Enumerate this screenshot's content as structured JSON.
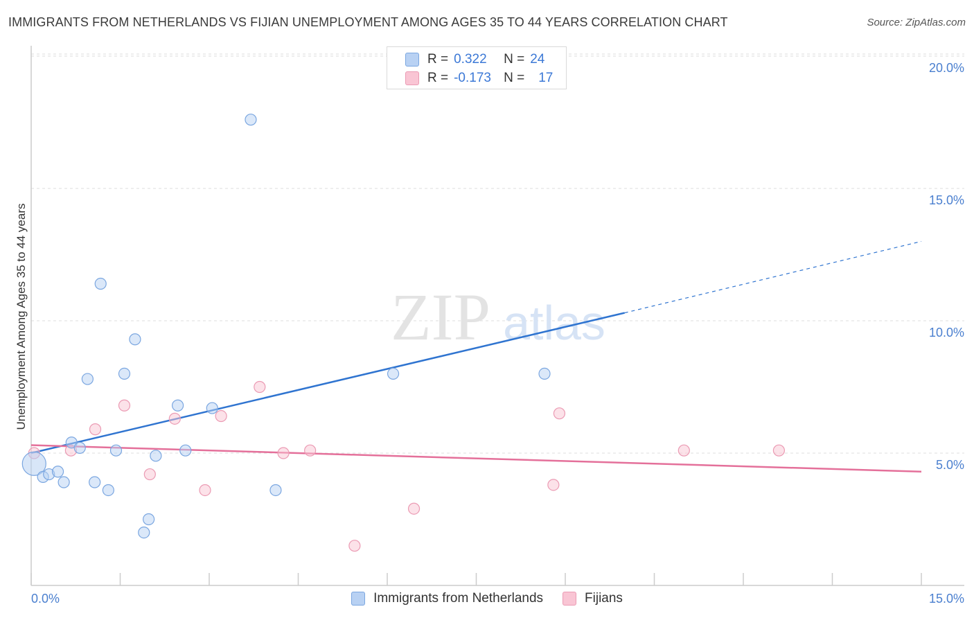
{
  "title": "IMMIGRANTS FROM NETHERLANDS VS FIJIAN UNEMPLOYMENT AMONG AGES 35 TO 44 YEARS CORRELATION CHART",
  "source": "Source: ZipAtlas.com",
  "watermark": {
    "zip": "ZIP",
    "atlas": "atlas"
  },
  "legend_top": {
    "rows": [
      {
        "r_label": "R =",
        "r_value": "0.322",
        "n_label": "N =",
        "n_value": "24"
      },
      {
        "r_label": "R =",
        "r_value": "-0.173",
        "n_label": "N =",
        "n_value": "17"
      }
    ]
  },
  "legend_bottom": {
    "items": [
      {
        "label": "Immigrants from Netherlands"
      },
      {
        "label": "Fijians"
      }
    ]
  },
  "colors": {
    "blue_fill": "#b8d1f3",
    "blue_stroke": "#7aa6e0",
    "blue_line": "#2f74d0",
    "pink_fill": "#f9c5d4",
    "pink_stroke": "#eb9ab3",
    "pink_line": "#e4709a",
    "tick_text": "#4a7fcf",
    "grid": "#dddddd"
  },
  "chart_data": {
    "type": "scatter",
    "title": "IMMIGRANTS FROM NETHERLANDS VS FIJIAN UNEMPLOYMENT AMONG AGES 35 TO 44 YEARS CORRELATION CHART",
    "xlabel": "",
    "ylabel": "Unemployment Among Ages 35 to 44 years",
    "xlim": [
      0,
      15
    ],
    "ylim": [
      0,
      20
    ],
    "x_tick_labels": [
      "0.0%",
      "15.0%"
    ],
    "y_ticks": [
      5,
      10,
      15,
      20
    ],
    "y_tick_labels": [
      "5.0%",
      "10.0%",
      "15.0%",
      "20.0%"
    ],
    "series": [
      {
        "name": "Immigrants from Netherlands",
        "color": "#b8d1f3",
        "points": [
          {
            "x": 0.05,
            "y": 4.6,
            "big": true
          },
          {
            "x": 0.2,
            "y": 4.1
          },
          {
            "x": 0.3,
            "y": 4.2
          },
          {
            "x": 0.45,
            "y": 4.3
          },
          {
            "x": 0.55,
            "y": 3.9
          },
          {
            "x": 0.68,
            "y": 5.4
          },
          {
            "x": 0.82,
            "y": 5.2
          },
          {
            "x": 0.95,
            "y": 7.8
          },
          {
            "x": 1.07,
            "y": 3.9
          },
          {
            "x": 1.17,
            "y": 11.4
          },
          {
            "x": 1.3,
            "y": 3.6
          },
          {
            "x": 1.43,
            "y": 5.1
          },
          {
            "x": 1.57,
            "y": 8.0
          },
          {
            "x": 1.75,
            "y": 9.3
          },
          {
            "x": 1.9,
            "y": 2.0
          },
          {
            "x": 1.98,
            "y": 2.5
          },
          {
            "x": 2.1,
            "y": 4.9
          },
          {
            "x": 2.47,
            "y": 6.8
          },
          {
            "x": 2.6,
            "y": 5.1
          },
          {
            "x": 3.05,
            "y": 6.7
          },
          {
            "x": 3.7,
            "y": 17.6
          },
          {
            "x": 4.12,
            "y": 3.6
          },
          {
            "x": 6.1,
            "y": 8.0
          },
          {
            "x": 8.65,
            "y": 8.0
          }
        ],
        "trend": {
          "x0": 0,
          "y0": 5.0,
          "x1": 10.0,
          "y1": 10.3,
          "dashed_to_x": 15.0,
          "dashed_to_y": 13.0
        }
      },
      {
        "name": "Fijians",
        "color": "#f9c5d4",
        "points": [
          {
            "x": 0.05,
            "y": 5.0
          },
          {
            "x": 0.67,
            "y": 5.1
          },
          {
            "x": 1.08,
            "y": 5.9
          },
          {
            "x": 1.57,
            "y": 6.8
          },
          {
            "x": 2.0,
            "y": 4.2
          },
          {
            "x": 2.42,
            "y": 6.3
          },
          {
            "x": 2.93,
            "y": 3.6
          },
          {
            "x": 3.2,
            "y": 6.4
          },
          {
            "x": 3.85,
            "y": 7.5
          },
          {
            "x": 4.25,
            "y": 5.0
          },
          {
            "x": 4.7,
            "y": 5.1
          },
          {
            "x": 5.45,
            "y": 1.5
          },
          {
            "x": 6.45,
            "y": 2.9
          },
          {
            "x": 8.8,
            "y": 3.8
          },
          {
            "x": 8.9,
            "y": 6.5
          },
          {
            "x": 11.0,
            "y": 5.1
          },
          {
            "x": 12.6,
            "y": 5.1
          }
        ],
        "trend": {
          "x0": 0,
          "y0": 5.3,
          "x1": 15.0,
          "y1": 4.3
        }
      }
    ]
  }
}
